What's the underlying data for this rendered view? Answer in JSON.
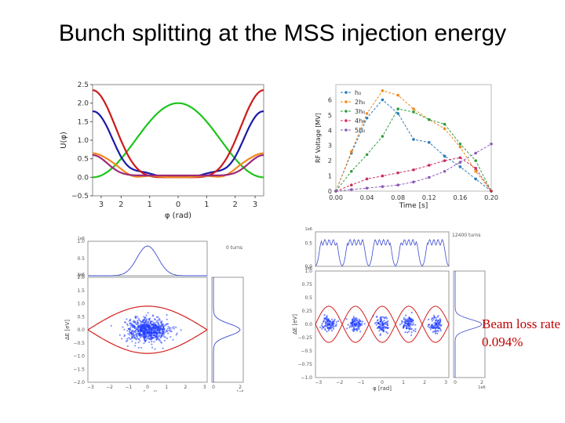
{
  "slide": {
    "title": "Bunch splitting at the MSS injection energy",
    "beam_loss_label": "Beam loss rate",
    "beam_loss_value": "0.094%"
  },
  "chart_data": [
    {
      "type": "line",
      "title": "",
      "xlabel": "φ (rad)",
      "ylabel": "U(φ)",
      "xlim": [
        3.14,
        -3.14
      ],
      "ylim": [
        -0.5,
        2.5
      ],
      "xticks": [
        "3",
        "2",
        "1",
        "0",
        "1",
        "2",
        "3"
      ],
      "yticks": [
        "−0.5",
        "0.0",
        "0.5",
        "1.0",
        "1.5",
        "2.0",
        "2.5"
      ],
      "series": [
        {
          "name": "green",
          "color": "#1cc41c",
          "formula": "1 + cos(phi)"
        },
        {
          "name": "blue",
          "color": "#1a1aa8",
          "formula": "1.75 peak at edges, ~0.17 inner bumps"
        },
        {
          "name": "red",
          "color": "#cc1a1a",
          "formula": "2.35 peak at edges, flat near 0"
        },
        {
          "name": "orange",
          "color": "#f08a1e",
          "formula": "0.65 peak at edges"
        },
        {
          "name": "purple",
          "color": "#9c2a7a",
          "formula": "0.55 peak at edges"
        }
      ]
    },
    {
      "type": "line",
      "title": "",
      "xlabel": "Time [s]",
      "ylabel": "RF Voltage [MV]",
      "xlim": [
        0,
        0.2
      ],
      "ylim": [
        0,
        7
      ],
      "xticks": [
        "0.00",
        "0.04",
        "0.08",
        "0.12",
        "0.16",
        "0.20"
      ],
      "yticks": [
        "0",
        "1",
        "2",
        "3",
        "4",
        "5",
        "6"
      ],
      "legend": [
        "h₀",
        "2h₀",
        "3h₀",
        "4h₀",
        "5h₀"
      ],
      "series": [
        {
          "name": "h₀",
          "color": "#2a7ab8",
          "x": [
            0,
            0.02,
            0.04,
            0.06,
            0.08,
            0.1,
            0.12,
            0.14,
            0.16,
            0.18,
            0.2
          ],
          "values": [
            0,
            2.5,
            4.8,
            6.0,
            5.1,
            3.4,
            3.2,
            2.3,
            1.6,
            0.8,
            0
          ]
        },
        {
          "name": "2h₀",
          "color": "#f08a1e",
          "x": [
            0,
            0.02,
            0.04,
            0.06,
            0.08,
            0.1,
            0.12,
            0.14,
            0.16,
            0.18,
            0.2
          ],
          "values": [
            0,
            2.6,
            5.1,
            6.6,
            6.3,
            5.4,
            4.7,
            4.1,
            2.9,
            1.3,
            0
          ]
        },
        {
          "name": "3h₀",
          "color": "#2e9e3e",
          "x": [
            0,
            0.02,
            0.04,
            0.06,
            0.08,
            0.1,
            0.12,
            0.14,
            0.16,
            0.18,
            0.2
          ],
          "values": [
            0,
            1.3,
            2.4,
            3.6,
            5.4,
            5.2,
            4.7,
            4.4,
            3.1,
            2.0,
            0
          ]
        },
        {
          "name": "4h₀",
          "color": "#c8305a",
          "x": [
            0,
            0.02,
            0.04,
            0.06,
            0.08,
            0.1,
            0.12,
            0.14,
            0.16,
            0.18,
            0.2
          ],
          "values": [
            0,
            0.4,
            0.8,
            1.0,
            1.2,
            1.4,
            1.7,
            2.0,
            2.2,
            1.5,
            0
          ]
        },
        {
          "name": "5h₀",
          "color": "#8a5ab8",
          "x": [
            0,
            0.02,
            0.04,
            0.06,
            0.08,
            0.1,
            0.12,
            0.14,
            0.16,
            0.18,
            0.2
          ],
          "values": [
            0,
            0.1,
            0.2,
            0.3,
            0.4,
            0.6,
            0.9,
            1.3,
            1.9,
            2.5,
            3.1
          ]
        }
      ]
    },
    {
      "type": "scatter",
      "title": "0 turns",
      "xlabel": "φ [rad]",
      "ylabel": "ΔE [eV]",
      "scale_label": "1e6",
      "xlim": [
        -3.14,
        3.14
      ],
      "ylim": [
        -2.0,
        2.0
      ],
      "xticks": [
        "−3",
        "−2",
        "−1",
        "0",
        "1",
        "2",
        "3"
      ],
      "yticks": [
        "−2.0",
        "−1.5",
        "−1.0",
        "−0.5",
        "0.0",
        "0.5",
        "1.0",
        "1.5",
        "2.0"
      ],
      "bunches": 1,
      "separatrix_height": 0.9,
      "top_hist_ticks": [
        "0.0",
        "0.5",
        "1.0"
      ],
      "right_hist_ticks": [
        "0",
        "2"
      ]
    },
    {
      "type": "scatter",
      "title": "12400 turns",
      "xlabel": "φ [rad]",
      "ylabel": "ΔE [eV]",
      "scale_label": "1e6",
      "xlim": [
        -3.14,
        3.14
      ],
      "ylim": [
        -1.0,
        1.0
      ],
      "xticks": [
        "−3",
        "−2",
        "−1",
        "0",
        "1",
        "2",
        "3"
      ],
      "yticks": [
        "−1.0",
        "−0.75",
        "−0.5",
        "−0.25",
        "0.0",
        "0.25",
        "0.5",
        "0.75",
        "1.0"
      ],
      "bunches": 5,
      "top_hist_ticks": [
        "0.0",
        "0.5"
      ],
      "right_hist_ticks": [
        "0",
        "2"
      ]
    }
  ]
}
